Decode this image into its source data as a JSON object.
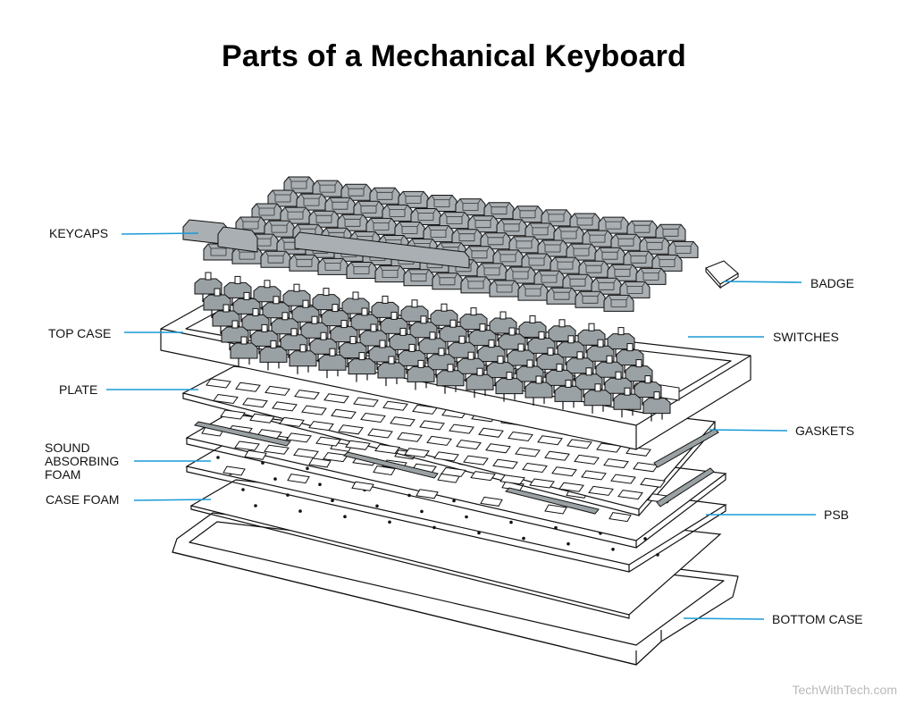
{
  "title": "Parts of a Mechanical Keyboard",
  "labels": {
    "keycaps": "KEYCAPS",
    "top_case": "TOP CASE",
    "plate": "PLATE",
    "sound_foam_line1": "SOUND",
    "sound_foam_line2": "ABSORBING",
    "sound_foam_line3": "FOAM",
    "case_foam": "CASE FOAM",
    "badge": "BADGE",
    "switches": "SWITCHES",
    "gaskets": "GASKETS",
    "psb": "PSB",
    "bottom_case": "BOTTOM CASE"
  },
  "watermark": "TechWithTech.com",
  "colors": {
    "leader_line": "#1a9bd6",
    "keycap_fill": "#a9afb2",
    "switch_fill": "#9aa1a4",
    "outline": "#111111"
  }
}
